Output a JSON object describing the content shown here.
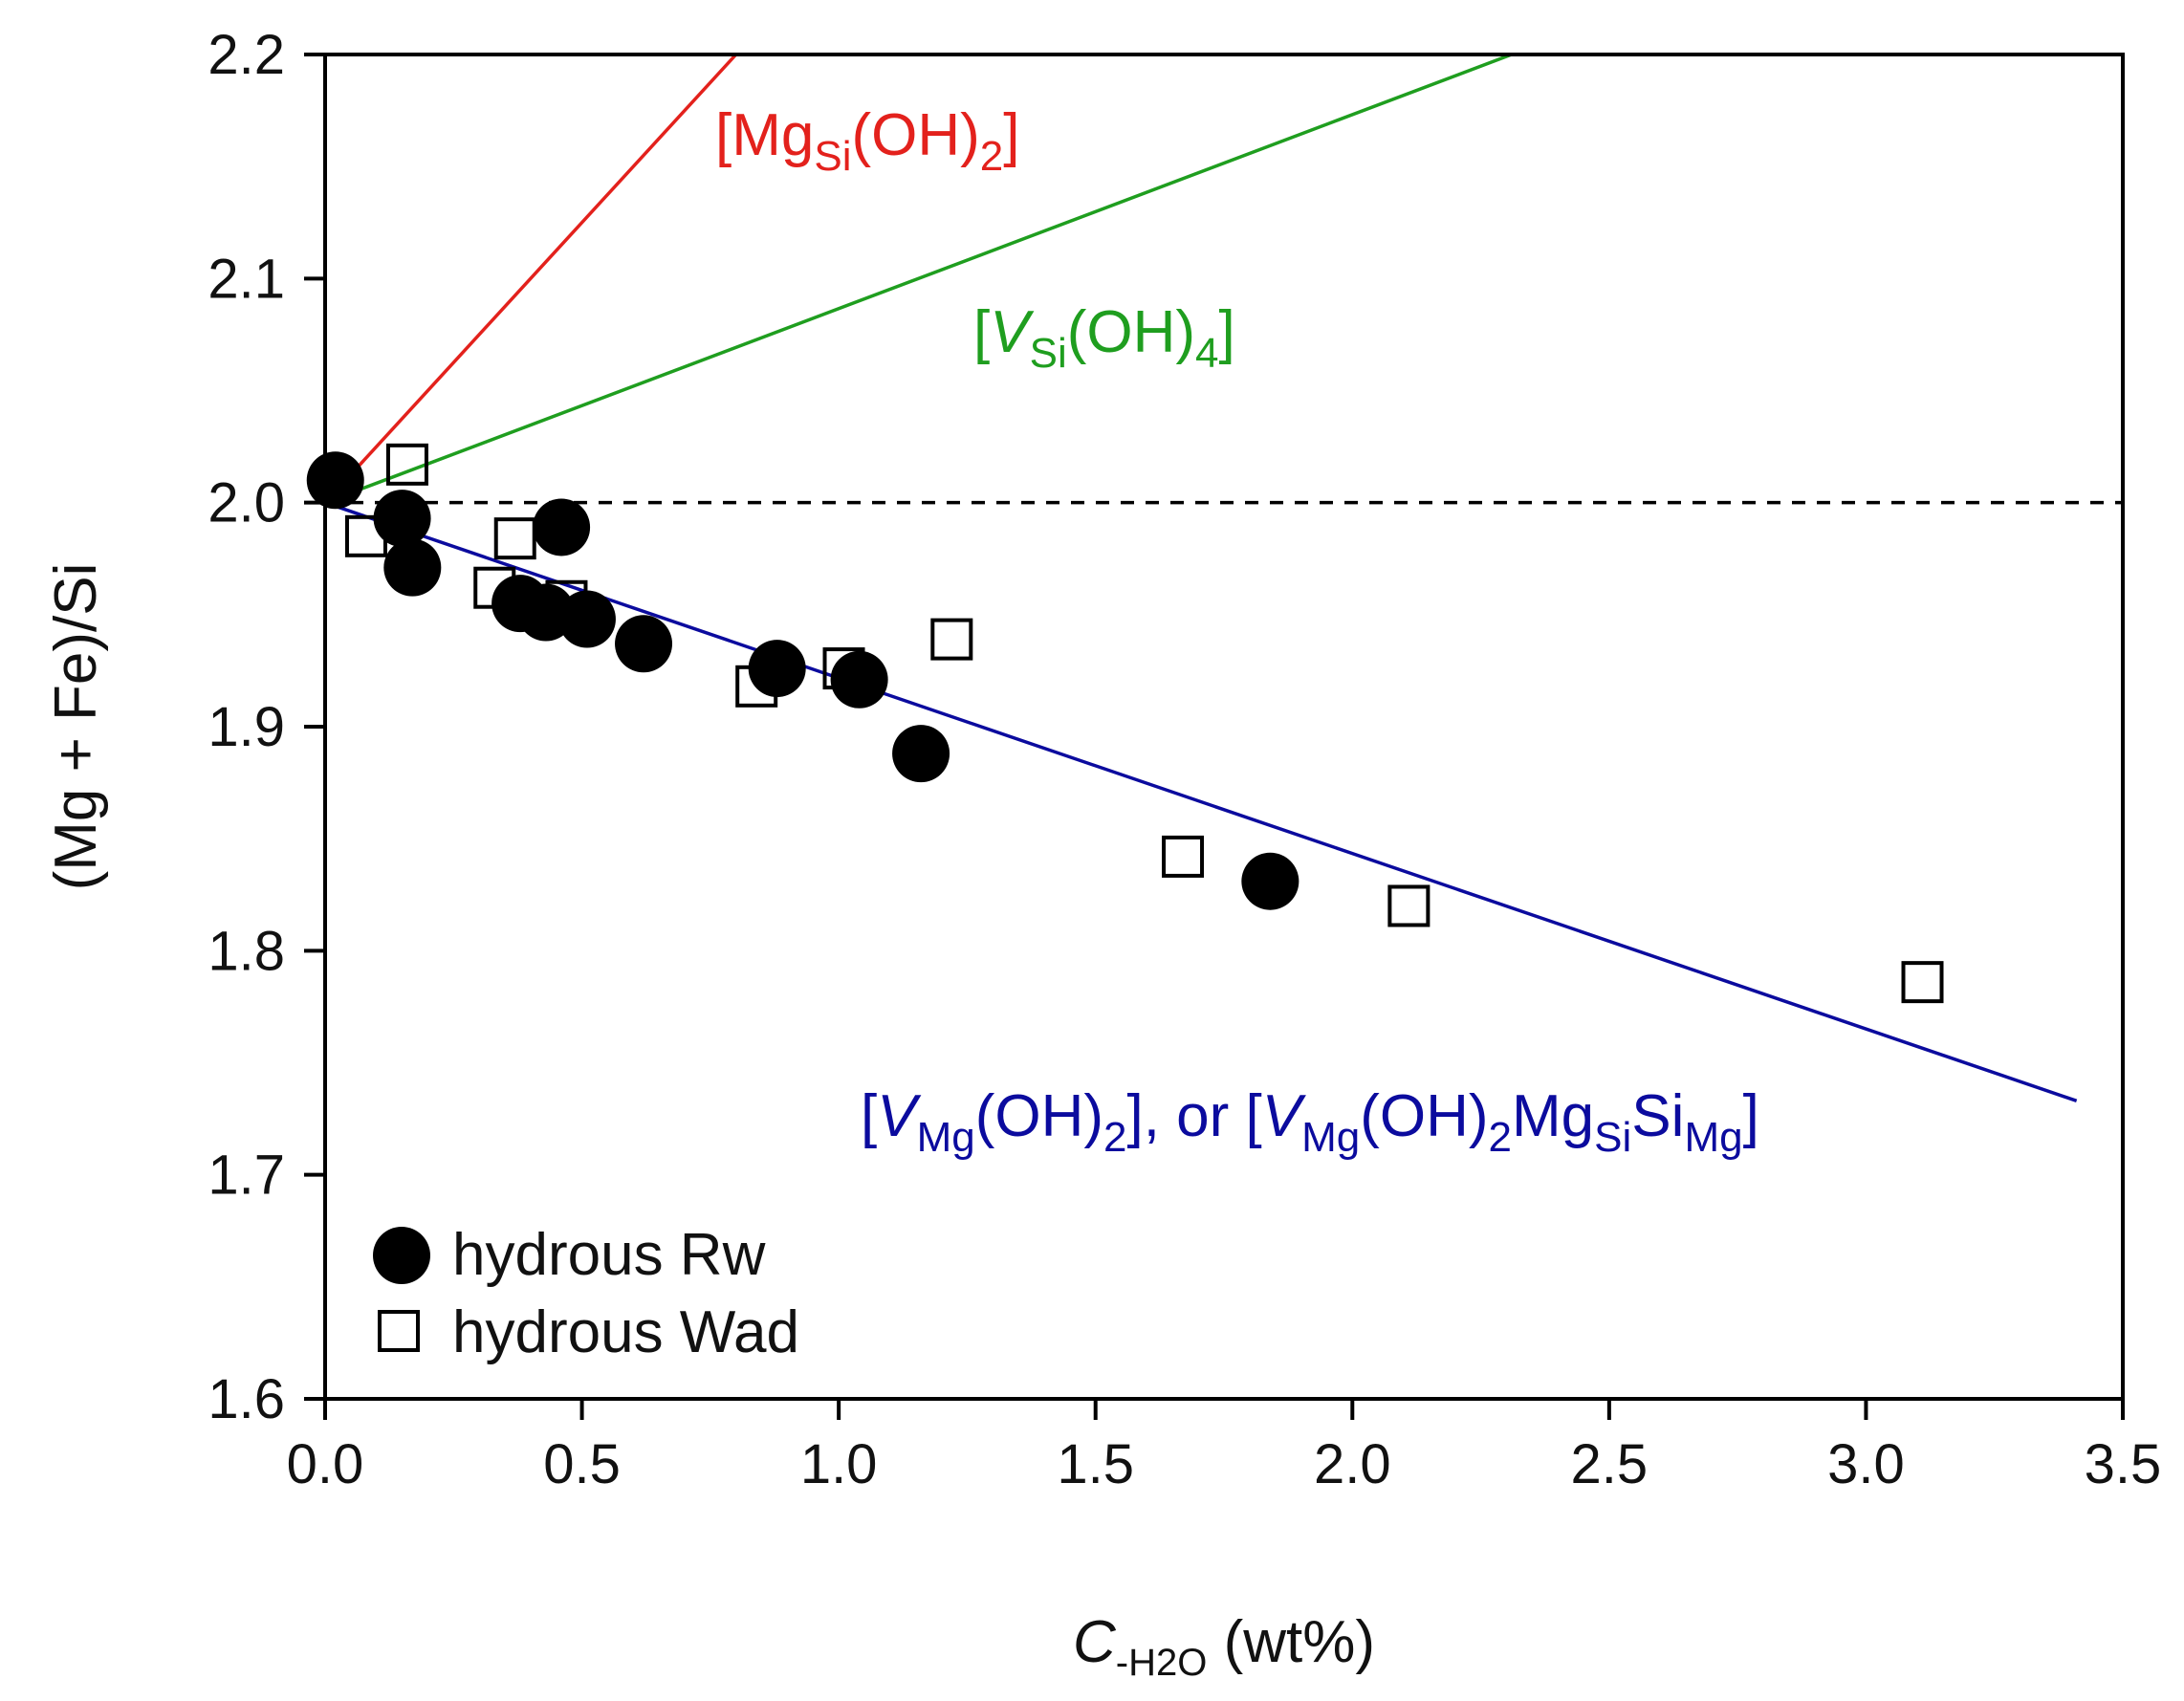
{
  "chart_data": {
    "type": "scatter",
    "xlim": [
      0.0,
      3.5
    ],
    "ylim": [
      1.6,
      2.2
    ],
    "x_ticks": [
      "0.0",
      "0.5",
      "1.0",
      "1.5",
      "2.0",
      "2.5",
      "3.0",
      "3.5"
    ],
    "y_ticks": [
      "1.6",
      "1.7",
      "1.8",
      "1.9",
      "2.0",
      "2.1",
      "2.2"
    ],
    "xlabel": {
      "main": "C",
      "sub": "-H2O",
      "rest": " (wt%)"
    },
    "ylabel": "(Mg + Fe)/Si",
    "grid": false,
    "legend": {
      "placement": "bottom-left"
    },
    "series": [
      {
        "name": "hydrous Rw",
        "marker": "filled-circle",
        "color": "#000000",
        "points": [
          {
            "x": 0.02,
            "y": 2.01
          },
          {
            "x": 0.15,
            "y": 1.993
          },
          {
            "x": 0.17,
            "y": 1.971
          },
          {
            "x": 0.38,
            "y": 1.955
          },
          {
            "x": 0.43,
            "y": 1.951
          },
          {
            "x": 0.46,
            "y": 1.989
          },
          {
            "x": 0.51,
            "y": 1.948
          },
          {
            "x": 0.62,
            "y": 1.937
          },
          {
            "x": 0.88,
            "y": 1.926
          },
          {
            "x": 1.04,
            "y": 1.921
          },
          {
            "x": 1.16,
            "y": 1.888
          },
          {
            "x": 1.84,
            "y": 1.831
          }
        ]
      },
      {
        "name": "hydrous Wad",
        "marker": "open-square",
        "color": "#000000",
        "points": [
          {
            "x": 0.08,
            "y": 1.985
          },
          {
            "x": 0.16,
            "y": 2.017
          },
          {
            "x": 0.33,
            "y": 1.962
          },
          {
            "x": 0.37,
            "y": 1.984
          },
          {
            "x": 0.47,
            "y": 1.956
          },
          {
            "x": 0.84,
            "y": 1.918
          },
          {
            "x": 1.01,
            "y": 1.926
          },
          {
            "x": 1.22,
            "y": 1.939
          },
          {
            "x": 1.67,
            "y": 1.842
          },
          {
            "x": 2.11,
            "y": 1.82
          },
          {
            "x": 3.11,
            "y": 1.786
          }
        ]
      }
    ],
    "lines": [
      {
        "id": "mgsi",
        "color": "#e3211c",
        "style": "solid",
        "start": {
          "x": 0.0,
          "y": 2.0
        },
        "end": {
          "x": 0.8,
          "y": 2.2
        },
        "label": {
          "parts": [
            [
              "[Mg",
              ""
            ],
            [
              "Si",
              "sub"
            ],
            [
              "(OH)",
              ""
            ],
            [
              "2",
              "sub"
            ],
            [
              "]",
              ""
            ]
          ]
        }
      },
      {
        "id": "vsi",
        "color": "#1f9e1f",
        "style": "solid",
        "start": {
          "x": 0.0,
          "y": 2.0
        },
        "end": {
          "x": 2.31,
          "y": 2.2
        },
        "label": {
          "parts": [
            [
              "[",
              ""
            ],
            [
              "V",
              "i"
            ],
            [
              "Si",
              "sub"
            ],
            [
              "(OH)",
              ""
            ],
            [
              "4",
              "sub"
            ],
            [
              "]",
              ""
            ]
          ]
        }
      },
      {
        "id": "vmg",
        "color": "#0b0b9e",
        "style": "solid",
        "start": {
          "x": 0.0,
          "y": 2.0
        },
        "end": {
          "x": 3.41,
          "y": 1.733
        },
        "label": {
          "parts": [
            [
              "[",
              ""
            ],
            [
              "V",
              "i"
            ],
            [
              "Mg",
              "sub"
            ],
            [
              "(OH)",
              ""
            ],
            [
              "2",
              "sub"
            ],
            [
              "], or [",
              ""
            ],
            [
              "V",
              "i"
            ],
            [
              "Mg",
              "sub"
            ],
            [
              "(OH)",
              ""
            ],
            [
              "2",
              "sub"
            ],
            [
              "Mg",
              ""
            ],
            [
              "Si",
              "sub"
            ],
            [
              "Si",
              ""
            ],
            [
              "Mg",
              "sub"
            ],
            [
              "]",
              ""
            ]
          ]
        }
      },
      {
        "id": "ref",
        "color": "#000000",
        "style": "dashed",
        "start": {
          "x": 0.0,
          "y": 2.0
        },
        "end": {
          "x": 3.5,
          "y": 2.0
        }
      }
    ]
  }
}
